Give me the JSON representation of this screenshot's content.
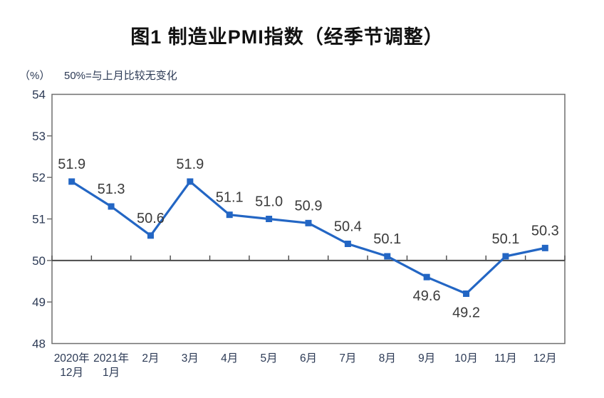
{
  "figure": {
    "title": "图1 制造业PMI指数（经季节调整）",
    "unit_label": "（%）",
    "note": "50%=与上月比较无变化"
  },
  "chart_data": {
    "type": "line",
    "title": "图1 制造业PMI指数（经季节调整）",
    "subtitle": "50%=与上月比较无变化",
    "ylabel": "（%）",
    "xlabel": "",
    "categories": [
      [
        "2020年",
        "12月"
      ],
      [
        "2021年",
        "1月"
      ],
      [
        "2月"
      ],
      [
        "3月"
      ],
      [
        "4月"
      ],
      [
        "5月"
      ],
      [
        "6月"
      ],
      [
        "7月"
      ],
      [
        "8月"
      ],
      [
        "9月"
      ],
      [
        "10月"
      ],
      [
        "11月"
      ],
      [
        "12月"
      ]
    ],
    "series": [
      {
        "name": "制造业PMI",
        "values": [
          51.9,
          51.3,
          50.6,
          51.9,
          51.1,
          51.0,
          50.9,
          50.4,
          50.1,
          49.6,
          49.2,
          50.1,
          50.3
        ]
      }
    ],
    "label_positions": [
      "above",
      "above",
      "above",
      "above",
      "above",
      "above",
      "above",
      "above",
      "above",
      "below",
      "below",
      "above",
      "above"
    ],
    "ylim": [
      48,
      54
    ],
    "ytick_step": 1,
    "reference_line": 50,
    "grid": false,
    "legend_position": "none",
    "colors": {
      "line": "#2366C4",
      "marker": "#2366C4",
      "frame": "#6f6f6f",
      "reference_line": "#4a4a4a",
      "data_label": "#3b3b3b",
      "axis_label": "#2c3a55",
      "title": "#111111"
    }
  }
}
